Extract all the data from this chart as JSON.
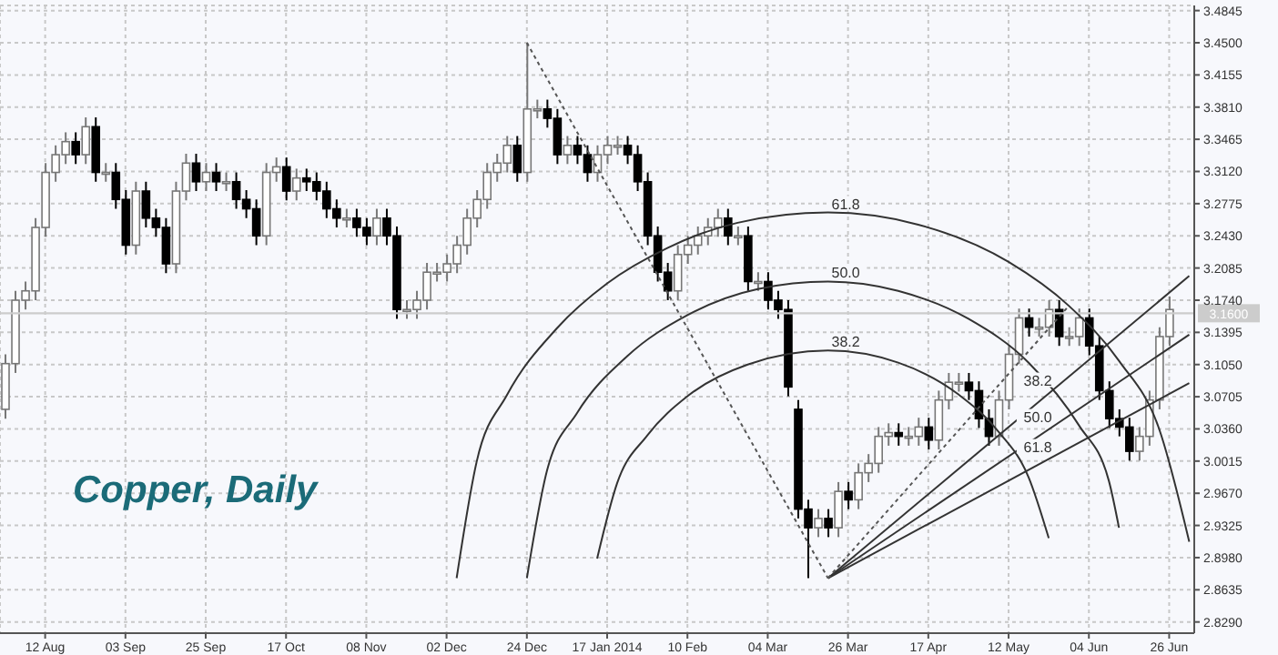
{
  "chart_data": {
    "type": "candlestick",
    "title": "Copper, Daily",
    "categories": [
      null,
      null,
      null,
      null,
      "12 Aug",
      null,
      null,
      null,
      null,
      null,
      null,
      null,
      "03 Sep",
      null,
      null,
      null,
      null,
      null,
      null,
      null,
      "25 Sep",
      null,
      null,
      null,
      null,
      null,
      null,
      null,
      "17 Oct",
      null,
      null,
      null,
      null,
      null,
      null,
      null,
      "08 Nov",
      null,
      null,
      null,
      null,
      null,
      null,
      null,
      "02 Dec",
      null,
      null,
      null,
      null,
      null,
      null,
      null,
      "24 Dec",
      null,
      null,
      null,
      null,
      null,
      null,
      null,
      "17 Jan 2014",
      null,
      null,
      null,
      null,
      null,
      null,
      null,
      "10 Feb",
      null,
      null,
      null,
      null,
      null,
      null,
      null,
      "04 Mar",
      null,
      null,
      null,
      null,
      null,
      null,
      null,
      "26 Mar",
      null,
      null,
      null,
      null,
      null,
      null,
      null,
      "17 Apr",
      null,
      null,
      null,
      null,
      null,
      null,
      null,
      "12 May",
      null,
      null,
      null,
      null,
      null,
      null,
      null,
      "04 Jun",
      null,
      null,
      null,
      null,
      null,
      null,
      null,
      "26 Jun",
      null,
      null
    ],
    "ohlc": [
      [
        3.057,
        3.116,
        3.047,
        3.106
      ],
      [
        3.106,
        3.184,
        3.096,
        3.174
      ],
      [
        3.174,
        3.194,
        3.164,
        3.184
      ],
      [
        3.184,
        3.262,
        3.174,
        3.252
      ],
      [
        3.252,
        3.321,
        3.242,
        3.311
      ],
      [
        3.311,
        3.34,
        3.301,
        3.33
      ],
      [
        3.33,
        3.354,
        3.32,
        3.344
      ],
      [
        3.344,
        3.354,
        3.32,
        3.33
      ],
      [
        3.33,
        3.37,
        3.32,
        3.36
      ],
      [
        3.36,
        3.37,
        3.301,
        3.311
      ],
      [
        3.311,
        3.321,
        3.301,
        3.311
      ],
      [
        3.311,
        3.321,
        3.272,
        3.282
      ],
      [
        3.282,
        3.292,
        3.223,
        3.233
      ],
      [
        3.233,
        3.301,
        3.223,
        3.291
      ],
      [
        3.291,
        3.301,
        3.252,
        3.262
      ],
      [
        3.262,
        3.272,
        3.242,
        3.252
      ],
      [
        3.252,
        3.262,
        3.203,
        3.213
      ],
      [
        3.213,
        3.301,
        3.203,
        3.291
      ],
      [
        3.291,
        3.331,
        3.281,
        3.321
      ],
      [
        3.321,
        3.331,
        3.291,
        3.301
      ],
      [
        3.301,
        3.321,
        3.291,
        3.311
      ],
      [
        3.311,
        3.321,
        3.291,
        3.301
      ],
      [
        3.301,
        3.311,
        3.291,
        3.301
      ],
      [
        3.301,
        3.311,
        3.272,
        3.282
      ],
      [
        3.282,
        3.292,
        3.262,
        3.272
      ],
      [
        3.272,
        3.282,
        3.233,
        3.243
      ],
      [
        3.243,
        3.321,
        3.233,
        3.311
      ],
      [
        3.311,
        3.327,
        3.301,
        3.317
      ],
      [
        3.317,
        3.327,
        3.281,
        3.291
      ],
      [
        3.291,
        3.315,
        3.281,
        3.305
      ],
      [
        3.305,
        3.315,
        3.291,
        3.301
      ],
      [
        3.301,
        3.311,
        3.281,
        3.291
      ],
      [
        3.291,
        3.301,
        3.262,
        3.272
      ],
      [
        3.272,
        3.282,
        3.252,
        3.262
      ],
      [
        3.262,
        3.272,
        3.252,
        3.262
      ],
      [
        3.262,
        3.272,
        3.242,
        3.252
      ],
      [
        3.252,
        3.262,
        3.233,
        3.243
      ],
      [
        3.243,
        3.272,
        3.233,
        3.262
      ],
      [
        3.262,
        3.272,
        3.233,
        3.243
      ],
      [
        3.243,
        3.253,
        3.154,
        3.164
      ],
      [
        3.164,
        3.174,
        3.154,
        3.164
      ],
      [
        3.164,
        3.184,
        3.154,
        3.174
      ],
      [
        3.174,
        3.214,
        3.164,
        3.204
      ],
      [
        3.204,
        3.214,
        3.194,
        3.204
      ],
      [
        3.204,
        3.223,
        3.194,
        3.213
      ],
      [
        3.213,
        3.243,
        3.203,
        3.233
      ],
      [
        3.233,
        3.272,
        3.223,
        3.262
      ],
      [
        3.262,
        3.292,
        3.252,
        3.282
      ],
      [
        3.282,
        3.321,
        3.272,
        3.311
      ],
      [
        3.311,
        3.331,
        3.301,
        3.321
      ],
      [
        3.321,
        3.35,
        3.311,
        3.34
      ],
      [
        3.34,
        3.35,
        3.301,
        3.311
      ],
      [
        3.311,
        3.45,
        3.301,
        3.379
      ],
      [
        3.379,
        3.389,
        3.369,
        3.379
      ],
      [
        3.379,
        3.389,
        3.359,
        3.369
      ],
      [
        3.369,
        3.379,
        3.32,
        3.33
      ],
      [
        3.33,
        3.35,
        3.32,
        3.34
      ],
      [
        3.34,
        3.35,
        3.32,
        3.33
      ],
      [
        3.33,
        3.34,
        3.301,
        3.311
      ],
      [
        3.311,
        3.34,
        3.301,
        3.33
      ],
      [
        3.33,
        3.35,
        3.32,
        3.34
      ],
      [
        3.34,
        3.35,
        3.33,
        3.34
      ],
      [
        3.34,
        3.35,
        3.32,
        3.33
      ],
      [
        3.33,
        3.34,
        3.291,
        3.301
      ],
      [
        3.301,
        3.311,
        3.233,
        3.243
      ],
      [
        3.243,
        3.253,
        3.194,
        3.204
      ],
      [
        3.204,
        3.214,
        3.174,
        3.184
      ],
      [
        3.184,
        3.233,
        3.174,
        3.223
      ],
      [
        3.223,
        3.243,
        3.213,
        3.233
      ],
      [
        3.233,
        3.253,
        3.223,
        3.243
      ],
      [
        3.243,
        3.262,
        3.233,
        3.252
      ],
      [
        3.252,
        3.272,
        3.242,
        3.262
      ],
      [
        3.262,
        3.272,
        3.233,
        3.243
      ],
      [
        3.243,
        3.253,
        3.233,
        3.243
      ],
      [
        3.243,
        3.253,
        3.184,
        3.194
      ],
      [
        3.194,
        3.204,
        3.184,
        3.194
      ],
      [
        3.194,
        3.204,
        3.164,
        3.174
      ],
      [
        3.174,
        3.184,
        3.154,
        3.164
      ],
      [
        3.164,
        3.174,
        3.071,
        3.081
      ],
      [
        3.057,
        3.067,
        2.94,
        2.95
      ],
      [
        2.95,
        2.96,
        2.876,
        2.93
      ],
      [
        2.93,
        2.95,
        2.92,
        2.94
      ],
      [
        2.94,
        2.95,
        2.92,
        2.93
      ],
      [
        2.93,
        2.979,
        2.92,
        2.969
      ],
      [
        2.969,
        2.979,
        2.95,
        2.96
      ],
      [
        2.96,
        2.999,
        2.95,
        2.989
      ],
      [
        2.989,
        3.009,
        2.979,
        2.999
      ],
      [
        2.999,
        3.038,
        2.989,
        3.028
      ],
      [
        3.028,
        3.042,
        3.018,
        3.032
      ],
      [
        3.032,
        3.042,
        3.018,
        3.028
      ],
      [
        3.028,
        3.038,
        3.018,
        3.028
      ],
      [
        3.028,
        3.048,
        3.018,
        3.038
      ],
      [
        3.038,
        3.048,
        3.014,
        3.024
      ],
      [
        3.024,
        3.077,
        3.014,
        3.067
      ],
      [
        3.067,
        3.096,
        3.057,
        3.086
      ],
      [
        3.086,
        3.096,
        3.076,
        3.086
      ],
      [
        3.086,
        3.096,
        3.067,
        3.077
      ],
      [
        3.077,
        3.087,
        3.037,
        3.047
      ],
      [
        3.047,
        3.057,
        3.018,
        3.028
      ],
      [
        3.028,
        3.077,
        3.018,
        3.067
      ],
      [
        3.067,
        3.126,
        3.057,
        3.116
      ],
      [
        3.116,
        3.165,
        3.106,
        3.155
      ],
      [
        3.155,
        3.165,
        3.135,
        3.145
      ],
      [
        3.145,
        3.155,
        3.135,
        3.145
      ],
      [
        3.145,
        3.174,
        3.135,
        3.164
      ],
      [
        3.164,
        3.174,
        3.125,
        3.135
      ],
      [
        3.135,
        3.145,
        3.125,
        3.135
      ],
      [
        3.135,
        3.165,
        3.125,
        3.155
      ],
      [
        3.155,
        3.165,
        3.115,
        3.125
      ],
      [
        3.125,
        3.135,
        3.067,
        3.077
      ],
      [
        3.077,
        3.087,
        3.037,
        3.047
      ],
      [
        3.047,
        3.057,
        3.028,
        3.038
      ],
      [
        3.038,
        3.048,
        3.002,
        3.012
      ],
      [
        3.012,
        3.038,
        3.002,
        3.028
      ],
      [
        3.028,
        3.077,
        3.018,
        3.067
      ],
      [
        3.067,
        3.145,
        3.057,
        3.135
      ],
      [
        3.135,
        3.178,
        3.125,
        3.164
      ],
      null,
      null
    ],
    "series": [
      {
        "name": "61.8",
        "type": "line",
        "color": "#333333",
        "values": [
          null,
          null,
          null,
          null,
          null,
          null,
          null,
          null,
          null,
          null,
          null,
          null,
          null,
          null,
          null,
          null,
          null,
          null,
          null,
          null,
          null,
          null,
          null,
          null,
          null,
          null,
          null,
          null,
          null,
          null,
          null,
          null,
          null,
          null,
          null,
          null,
          null,
          null,
          null,
          null,
          null,
          null,
          null,
          null,
          null,
          2.876,
          null,
          3.001,
          null,
          null,
          3.072,
          null,
          null,
          null,
          null,
          3.144,
          null,
          null,
          null,
          null,
          3.192,
          null,
          null,
          null,
          null,
          null,
          3.23,
          null,
          null,
          null,
          null,
          null,
          null,
          3.257,
          null,
          null,
          null,
          null,
          null,
          null,
          null,
          null,
          3.268,
          null,
          null,
          null,
          null,
          null,
          null,
          null,
          null,
          3.255,
          null,
          null,
          null,
          null,
          null,
          null,
          null,
          null,
          3.215,
          null,
          null,
          null,
          null,
          null,
          3.168,
          null,
          null,
          null,
          null,
          3.109,
          null,
          null,
          null,
          3.036,
          null,
          null,
          2.915
        ]
      },
      {
        "name": "50.0",
        "type": "line",
        "color": "#333333",
        "values": [
          null,
          null,
          null,
          null,
          null,
          null,
          null,
          null,
          null,
          null,
          null,
          null,
          null,
          null,
          null,
          null,
          null,
          null,
          null,
          null,
          null,
          null,
          null,
          null,
          null,
          null,
          null,
          null,
          null,
          null,
          null,
          null,
          null,
          null,
          null,
          null,
          null,
          null,
          null,
          null,
          null,
          null,
          null,
          null,
          null,
          null,
          null,
          null,
          null,
          null,
          null,
          null,
          2.876,
          null,
          2.991,
          null,
          null,
          3.053,
          null,
          null,
          null,
          null,
          3.114,
          null,
          null,
          null,
          null,
          null,
          3.158,
          null,
          null,
          null,
          null,
          null,
          null,
          3.186,
          null,
          null,
          null,
          null,
          null,
          null,
          3.194,
          null,
          null,
          null,
          null,
          null,
          null,
          3.184,
          null,
          null,
          null,
          null,
          null,
          null,
          3.154,
          null,
          null,
          null,
          null,
          null,
          3.107,
          null,
          null,
          null,
          null,
          3.04,
          null,
          null,
          2.98,
          2.93,
          null,
          null,
          null,
          null,
          null,
          null,
          null
        ]
      },
      {
        "name": "38.2",
        "type": "line",
        "color": "#333333",
        "values": [
          null,
          null,
          null,
          null,
          null,
          null,
          null,
          null,
          null,
          null,
          null,
          null,
          null,
          null,
          null,
          null,
          null,
          null,
          null,
          null,
          null,
          null,
          null,
          null,
          null,
          null,
          null,
          null,
          null,
          null,
          null,
          null,
          null,
          null,
          null,
          null,
          null,
          null,
          null,
          null,
          null,
          null,
          null,
          null,
          null,
          null,
          null,
          null,
          null,
          null,
          null,
          null,
          null,
          null,
          null,
          null,
          null,
          null,
          null,
          2.897,
          null,
          2.978,
          null,
          null,
          3.029,
          null,
          null,
          null,
          3.071,
          null,
          null,
          null,
          null,
          null,
          3.105,
          null,
          null,
          null,
          null,
          null,
          null,
          null,
          3.12,
          null,
          null,
          null,
          null,
          null,
          null,
          3.107,
          null,
          null,
          null,
          null,
          null,
          3.073,
          null,
          null,
          null,
          3.033,
          null,
          null,
          2.984,
          null,
          2.919,
          null,
          null,
          null,
          null,
          null,
          null,
          null,
          null,
          null,
          null,
          null,
          null,
          null,
          null
        ]
      },
      {
        "name": "38.2",
        "type": "line",
        "color": "#333333",
        "values": [
          null,
          null,
          null,
          null,
          null,
          null,
          null,
          null,
          null,
          null,
          null,
          null,
          null,
          null,
          null,
          null,
          null,
          null,
          null,
          null,
          null,
          null,
          null,
          null,
          null,
          null,
          null,
          null,
          null,
          null,
          null,
          null,
          null,
          null,
          null,
          null,
          null,
          null,
          null,
          null,
          null,
          null,
          null,
          null,
          null,
          null,
          null,
          null,
          null,
          null,
          null,
          null,
          null,
          null,
          null,
          null,
          null,
          null,
          null,
          null,
          null,
          null,
          null,
          null,
          null,
          null,
          null,
          null,
          null,
          null,
          null,
          null,
          null,
          null,
          null,
          null,
          null,
          null,
          null,
          null,
          null,
          null,
          2.876,
          null,
          null,
          null,
          null,
          null,
          null,
          null,
          null,
          null,
          null,
          null,
          null,
          null,
          null,
          null,
          null,
          null,
          null,
          null,
          null,
          null,
          null,
          null,
          null,
          null,
          null,
          null,
          null,
          null,
          null,
          null,
          null,
          null,
          null,
          null,
          3.2
        ]
      },
      {
        "name": "50.0",
        "type": "line",
        "color": "#333333",
        "values": [
          null,
          null,
          null,
          null,
          null,
          null,
          null,
          null,
          null,
          null,
          null,
          null,
          null,
          null,
          null,
          null,
          null,
          null,
          null,
          null,
          null,
          null,
          null,
          null,
          null,
          null,
          null,
          null,
          null,
          null,
          null,
          null,
          null,
          null,
          null,
          null,
          null,
          null,
          null,
          null,
          null,
          null,
          null,
          null,
          null,
          null,
          null,
          null,
          null,
          null,
          null,
          null,
          null,
          null,
          null,
          null,
          null,
          null,
          null,
          null,
          null,
          null,
          null,
          null,
          null,
          null,
          null,
          null,
          null,
          null,
          null,
          null,
          null,
          null,
          null,
          null,
          null,
          null,
          null,
          null,
          null,
          null,
          2.876,
          null,
          null,
          null,
          null,
          null,
          null,
          null,
          null,
          null,
          null,
          null,
          null,
          null,
          null,
          null,
          null,
          null,
          null,
          null,
          null,
          null,
          null,
          null,
          null,
          null,
          null,
          null,
          null,
          null,
          null,
          null,
          null,
          null,
          null,
          null,
          3.137
        ]
      },
      {
        "name": "61.8",
        "type": "line",
        "color": "#333333",
        "values": [
          null,
          null,
          null,
          null,
          null,
          null,
          null,
          null,
          null,
          null,
          null,
          null,
          null,
          null,
          null,
          null,
          null,
          null,
          null,
          null,
          null,
          null,
          null,
          null,
          null,
          null,
          null,
          null,
          null,
          null,
          null,
          null,
          null,
          null,
          null,
          null,
          null,
          null,
          null,
          null,
          null,
          null,
          null,
          null,
          null,
          null,
          null,
          null,
          null,
          null,
          null,
          null,
          null,
          null,
          null,
          null,
          null,
          null,
          null,
          null,
          null,
          null,
          null,
          null,
          null,
          null,
          null,
          null,
          null,
          null,
          null,
          null,
          null,
          null,
          null,
          null,
          null,
          null,
          null,
          null,
          null,
          null,
          2.876,
          null,
          null,
          null,
          null,
          null,
          null,
          null,
          null,
          null,
          null,
          null,
          null,
          null,
          null,
          null,
          null,
          null,
          null,
          null,
          null,
          null,
          null,
          null,
          null,
          null,
          null,
          null,
          null,
          null,
          null,
          null,
          null,
          null,
          null,
          null,
          3.085
        ]
      },
      {
        "type": "line",
        "line_style": "dotted",
        "color": "#555555",
        "values": [
          null,
          null,
          null,
          null,
          null,
          null,
          null,
          null,
          null,
          null,
          null,
          null,
          null,
          null,
          null,
          null,
          null,
          null,
          null,
          null,
          null,
          null,
          null,
          null,
          null,
          null,
          null,
          null,
          null,
          null,
          null,
          null,
          null,
          null,
          null,
          null,
          null,
          null,
          null,
          null,
          null,
          null,
          null,
          null,
          null,
          null,
          null,
          null,
          null,
          null,
          null,
          null,
          3.45,
          null,
          null,
          null,
          null,
          null,
          null,
          null,
          null,
          null,
          null,
          null,
          null,
          null,
          null,
          null,
          null,
          null,
          null,
          null,
          null,
          null,
          null,
          null,
          null,
          null,
          null,
          null,
          null,
          null,
          2.876,
          null,
          null,
          null,
          null,
          null,
          null,
          null,
          null,
          null,
          null,
          null,
          null,
          null,
          null,
          null,
          null,
          null,
          null,
          null,
          null,
          null,
          null,
          null,
          null,
          null,
          null,
          null,
          null,
          null,
          null,
          null,
          null,
          null,
          null,
          null,
          null
        ]
      },
      {
        "type": "line",
        "line_style": "dotted",
        "color": "#555555",
        "values": [
          null,
          null,
          null,
          null,
          null,
          null,
          null,
          null,
          null,
          null,
          null,
          null,
          null,
          null,
          null,
          null,
          null,
          null,
          null,
          null,
          null,
          null,
          null,
          null,
          null,
          null,
          null,
          null,
          null,
          null,
          null,
          null,
          null,
          null,
          null,
          null,
          null,
          null,
          null,
          null,
          null,
          null,
          null,
          null,
          null,
          null,
          null,
          null,
          null,
          null,
          null,
          null,
          null,
          null,
          null,
          null,
          null,
          null,
          null,
          null,
          null,
          null,
          null,
          null,
          null,
          null,
          null,
          null,
          null,
          null,
          null,
          null,
          null,
          null,
          null,
          null,
          null,
          null,
          null,
          null,
          null,
          null,
          2.876,
          null,
          null,
          null,
          null,
          null,
          null,
          null,
          null,
          null,
          null,
          null,
          null,
          null,
          null,
          null,
          null,
          null,
          null,
          null,
          null,
          null,
          null,
          null,
          3.168,
          null,
          null,
          null,
          null,
          null,
          null,
          null,
          null,
          null,
          null,
          null,
          null
        ]
      }
    ],
    "ylim": [
      2.817,
      3.49
    ],
    "yticks": [
      3.4845,
      {
        "value": 3.45,
        "label": "3.4500"
      },
      3.4155,
      {
        "value": 3.381,
        "label": "3.3810"
      },
      3.3465,
      {
        "value": 3.312,
        "label": "3.3120"
      },
      3.2775,
      {
        "value": 3.243,
        "label": "3.2430"
      },
      3.2085,
      {
        "value": 3.174,
        "label": "3.1740"
      },
      3.1395,
      {
        "value": 3.105,
        "label": "3.1050"
      },
      3.0705,
      {
        "value": 3.036,
        "label": "3.0360"
      },
      3.0015,
      {
        "value": 2.967,
        "label": "2.9670"
      },
      2.9325,
      {
        "value": 2.898,
        "label": "2.8980"
      },
      2.8635,
      {
        "value": 2.829,
        "label": "2.8290"
      }
    ],
    "grid": true,
    "ref_lines": [
      {
        "axis": "y",
        "value": 3.16,
        "label": "3.1600",
        "color": "#cccccc"
      }
    ]
  }
}
